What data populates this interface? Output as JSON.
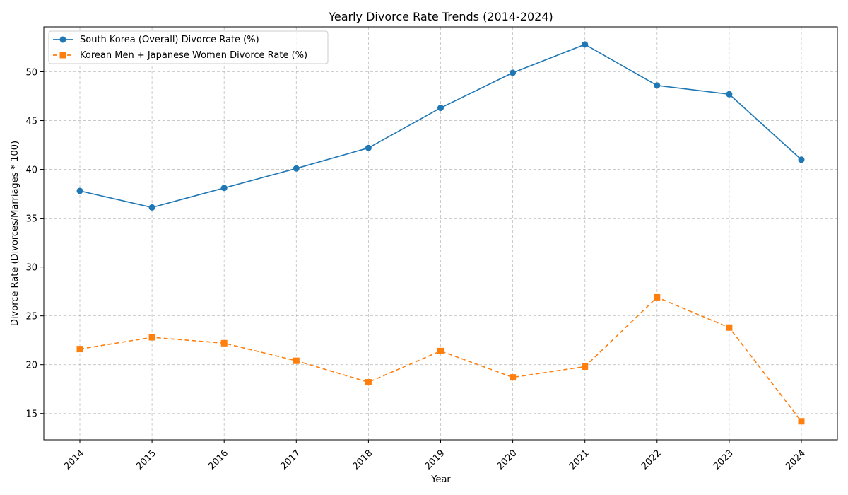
{
  "chart_data": {
    "type": "line",
    "title": "Yearly Divorce Rate Trends (2014-2024)",
    "xlabel": "Year",
    "ylabel": "Divorce Rate (Divorces/Marriages * 100)",
    "categories": [
      "2014",
      "2015",
      "2016",
      "2017",
      "2018",
      "2019",
      "2020",
      "2021",
      "2022",
      "2023",
      "2024"
    ],
    "ylim": [
      12.3,
      54.6
    ],
    "yticks": [
      15,
      20,
      25,
      30,
      35,
      40,
      45,
      50
    ],
    "grid": true,
    "legend_position": "upper-left",
    "series": [
      {
        "name": "South Korea (Overall) Divorce Rate (%)",
        "color": "#1f77b4",
        "marker": "circle",
        "line_style": "solid",
        "values": [
          37.8,
          36.1,
          38.1,
          40.1,
          42.2,
          46.3,
          49.9,
          52.8,
          48.6,
          47.7,
          41.0
        ]
      },
      {
        "name": "Korean Men + Japanese Women Divorce Rate (%)",
        "color": "#ff7f0e",
        "marker": "square",
        "line_style": "dashed",
        "values": [
          21.6,
          22.8,
          22.2,
          20.4,
          18.2,
          21.4,
          18.7,
          19.8,
          26.9,
          23.8,
          14.2
        ]
      }
    ],
    "tick_colors": {
      "default": "#000000",
      "2024": "#808080"
    }
  }
}
